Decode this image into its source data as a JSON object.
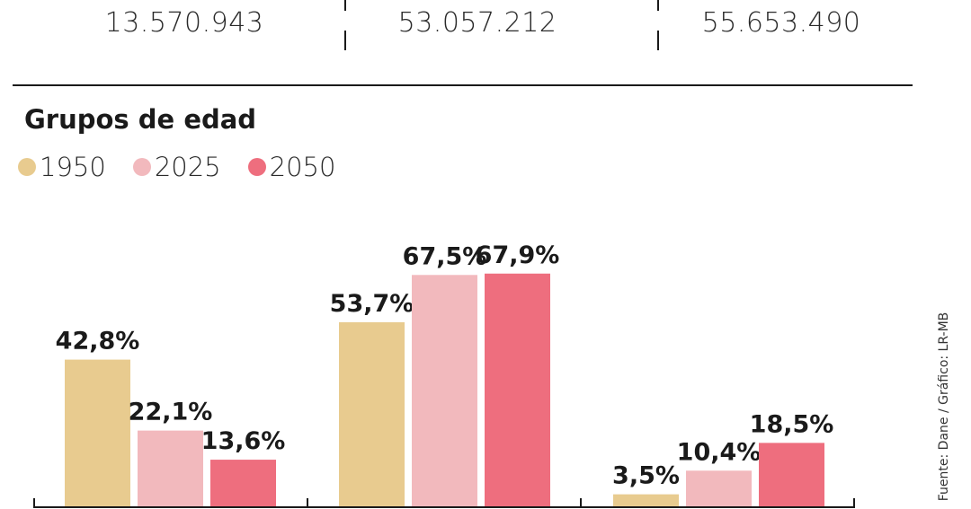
{
  "totals": {
    "values": [
      "13.570.943",
      "53.057.212",
      "55.653.490"
    ]
  },
  "section_title": "Grupos de edad",
  "source": "Fuente: Dane / Gráfico: LR-MB",
  "chart_data": {
    "type": "bar",
    "title": "Grupos de edad",
    "xlabel": "",
    "ylabel": "",
    "ylim": [
      0,
      70
    ],
    "grid": false,
    "legend_position": "top-left",
    "categories": [
      "",
      "",
      ""
    ],
    "series": [
      {
        "name": "1950",
        "color": "#e8cb8f",
        "values": [
          42.8,
          53.7,
          3.5
        ],
        "labels": [
          "42,8%",
          "53,7%",
          "3,5%"
        ]
      },
      {
        "name": "2025",
        "color": "#f2b9bd",
        "values": [
          22.1,
          67.5,
          10.4
        ],
        "labels": [
          "22,1%",
          "67,5%",
          "10,4%"
        ]
      },
      {
        "name": "2050",
        "color": "#ee6e7e",
        "values": [
          13.6,
          67.9,
          18.5
        ],
        "labels": [
          "13,6%",
          "67,9%",
          "18,5%"
        ]
      }
    ]
  }
}
